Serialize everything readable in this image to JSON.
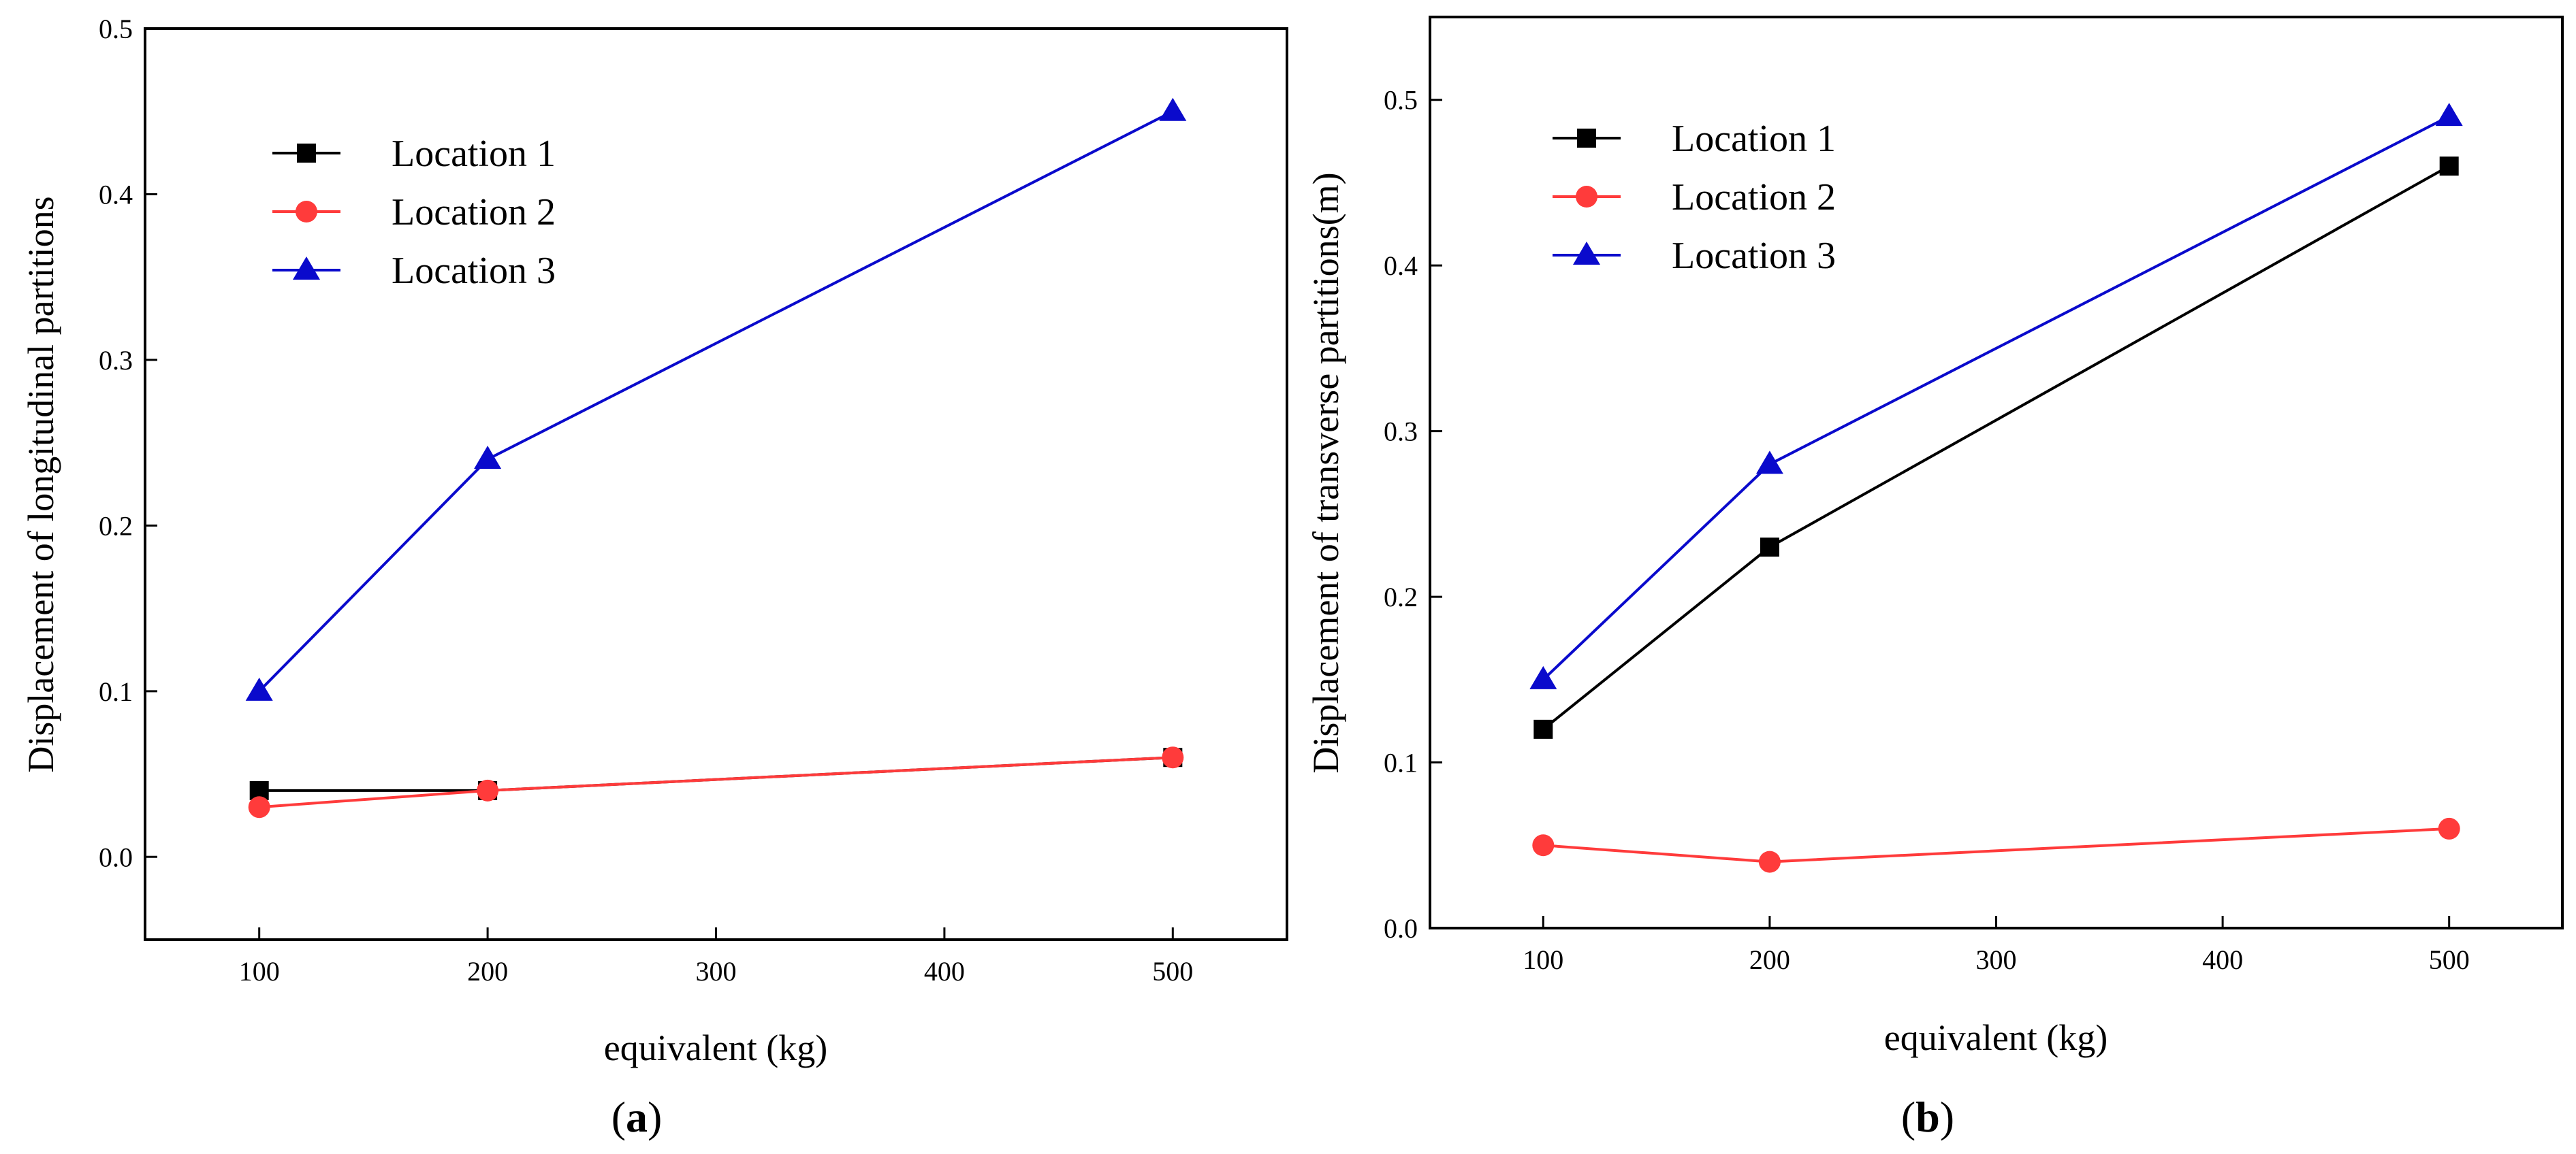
{
  "chart_data": [
    {
      "type": "line",
      "caption": "(a)",
      "caption_letter": "a",
      "xlabel": "equivalent (kg)",
      "ylabel": "Displacement of longitudinal partitions",
      "x_ticks": [
        100,
        200,
        300,
        400,
        500
      ],
      "y_ticks": [
        0.0,
        0.1,
        0.2,
        0.3,
        0.4,
        0.5
      ],
      "y_tick_labels": [
        "0.0",
        "0.1",
        "0.2",
        "0.3",
        "0.4",
        "0.5"
      ],
      "xlim": [
        50,
        550
      ],
      "ylim": [
        -0.05,
        0.5
      ],
      "legend_position": "top-left",
      "series": [
        {
          "name": "Location 1",
          "color": "#000000",
          "marker": "square",
          "x": [
            100,
            200,
            500
          ],
          "values": [
            0.04,
            0.04,
            0.06
          ]
        },
        {
          "name": "Location 2",
          "color": "#ff3b3b",
          "marker": "circle",
          "x": [
            100,
            200,
            500
          ],
          "values": [
            0.03,
            0.04,
            0.06
          ]
        },
        {
          "name": "Location 3",
          "color": "#0a0acc",
          "marker": "triangle",
          "x": [
            100,
            200,
            500
          ],
          "values": [
            0.1,
            0.24,
            0.45
          ]
        }
      ]
    },
    {
      "type": "line",
      "caption": "(b)",
      "caption_letter": "b",
      "xlabel": "equivalent (kg)",
      "ylabel": "Displacement of transverse partitions(m)",
      "x_ticks": [
        100,
        200,
        300,
        400,
        500
      ],
      "y_ticks": [
        0.0,
        0.1,
        0.2,
        0.3,
        0.4,
        0.5
      ],
      "y_tick_labels": [
        "0.0",
        "0.1",
        "0.2",
        "0.3",
        "0.4",
        "0.5"
      ],
      "xlim": [
        50,
        550
      ],
      "ylim": [
        0.0,
        0.55
      ],
      "legend_position": "top-left",
      "series": [
        {
          "name": "Location 1",
          "color": "#000000",
          "marker": "square",
          "x": [
            100,
            200,
            500
          ],
          "values": [
            0.12,
            0.23,
            0.46
          ]
        },
        {
          "name": "Location 2",
          "color": "#ff3b3b",
          "marker": "circle",
          "x": [
            100,
            200,
            500
          ],
          "values": [
            0.05,
            0.04,
            0.06
          ]
        },
        {
          "name": "Location 3",
          "color": "#0a0acc",
          "marker": "triangle",
          "x": [
            100,
            200,
            500
          ],
          "values": [
            0.15,
            0.28,
            0.49
          ]
        }
      ]
    }
  ]
}
